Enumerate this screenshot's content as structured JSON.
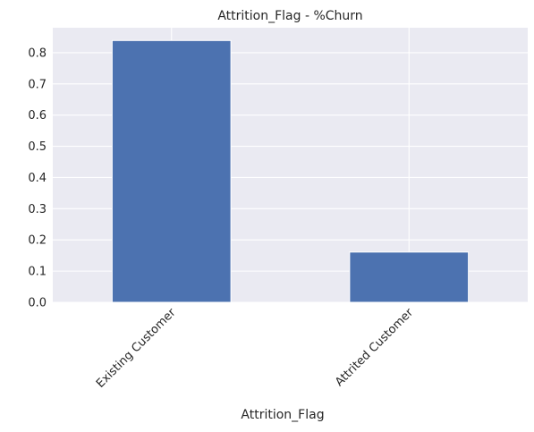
{
  "chart_data": {
    "type": "bar",
    "title": "Attrition_Flag - %Churn",
    "xlabel": "Attrition_Flag",
    "ylabel": "",
    "categories": [
      "Existing Customer",
      "Attrited Customer"
    ],
    "values": [
      0.839,
      0.161
    ],
    "ylim": [
      0,
      0.88
    ],
    "yticks": [
      "0.0",
      "0.1",
      "0.2",
      "0.3",
      "0.4",
      "0.5",
      "0.6",
      "0.7",
      "0.8"
    ],
    "grid": true,
    "legend": "none",
    "colors": {
      "bar": "#4c72b0",
      "plot_background": "#eaeaf2",
      "grid": "#ffffff",
      "text": "#262626"
    }
  }
}
